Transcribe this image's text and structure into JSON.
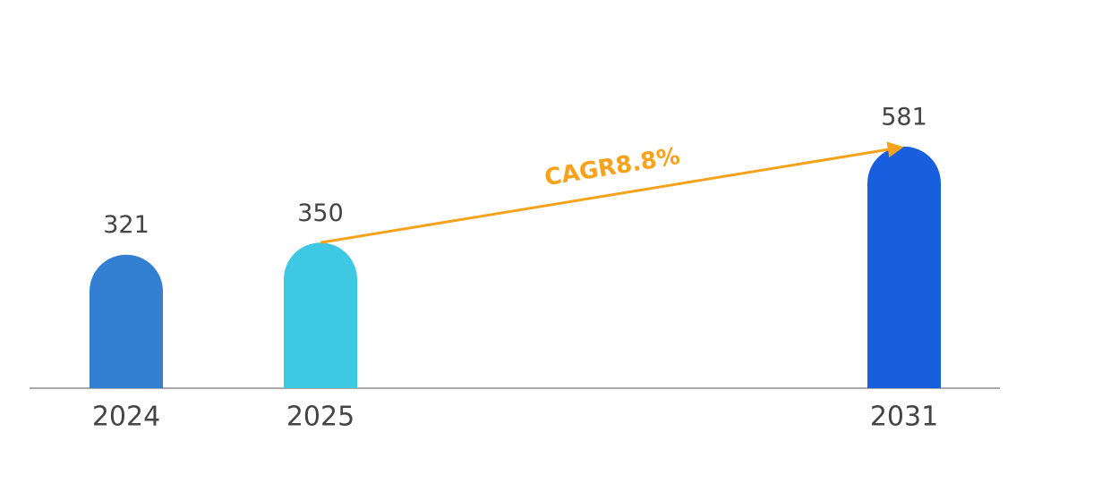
{
  "chart_data": {
    "type": "bar",
    "categories": [
      "2024",
      "2025",
      "2031"
    ],
    "values": [
      321,
      350,
      581
    ],
    "colors": [
      "#3380d2",
      "#3ec8e4",
      "#175fdf"
    ],
    "annotation": {
      "text": "CAGR8.8%",
      "color": "#f5a21c"
    }
  }
}
